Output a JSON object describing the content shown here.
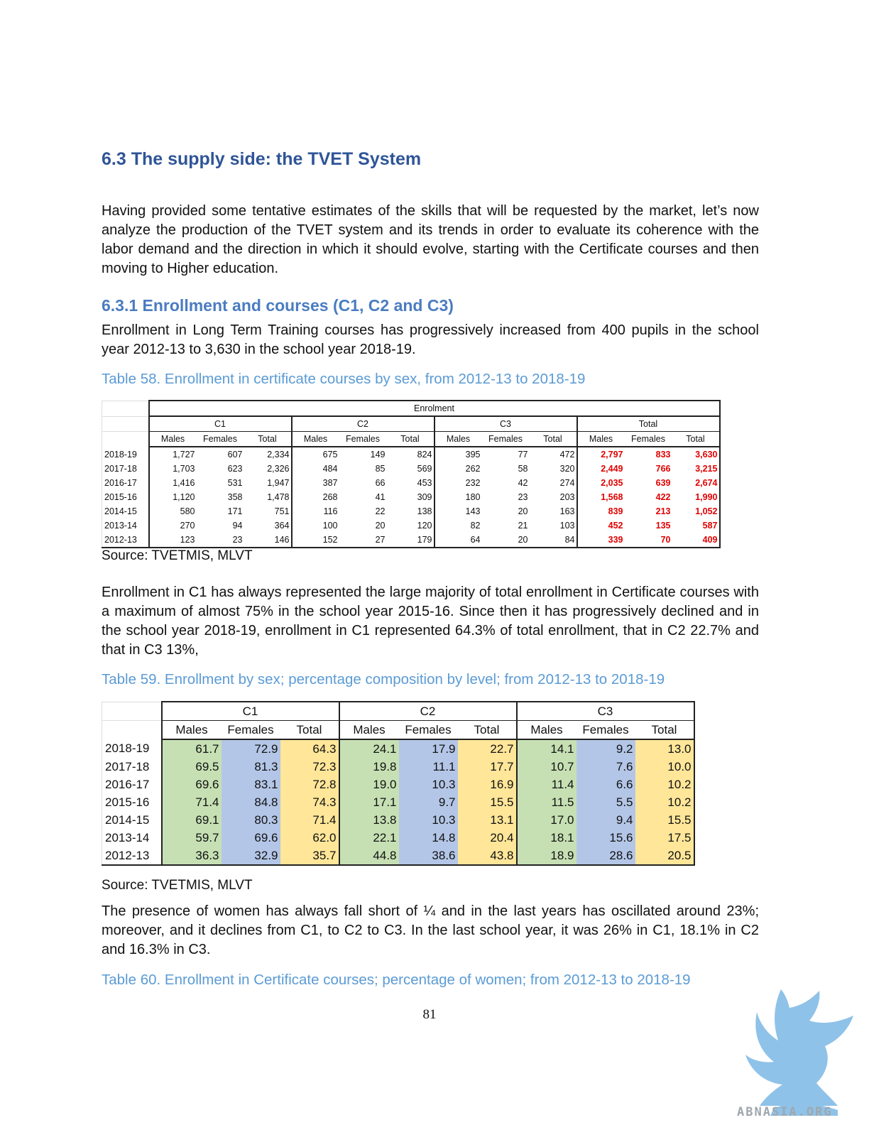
{
  "section_title": "6.3 The supply side: the TVET System",
  "intro_paragraph": "Having provided some tentative estimates of the skills that will be requested by the market, let’s now analyze the production of the TVET system and its trends in order to evaluate its coherence with the labor demand and the direction in which it should evolve, starting with the Certificate courses and then moving to Higher education.",
  "subsection_title": "6.3.1 Enrollment and courses (C1, C2 and C3)",
  "enrollment_paragraph": "Enrollment in Long Term Training courses has progressively increased from 400 pupils in the school year 2012-13 to 3,630 in the school year 2018-19.",
  "table58": {
    "caption": "Table 58. Enrollment in certificate courses by sex, from 2012-13 to 2018-19",
    "super_header": "Enrolment",
    "groups": [
      "C1",
      "C2",
      "C3",
      "Total"
    ],
    "subheaders": [
      "Males",
      "Females",
      "Total",
      "Males",
      "Females",
      "Total",
      "Males",
      "Females",
      "Total",
      "Males",
      "Females",
      "Total"
    ],
    "rows": [
      {
        "year": "2018-19",
        "values": [
          "1,727",
          "607",
          "2,334",
          "675",
          "149",
          "824",
          "395",
          "77",
          "472",
          "2,797",
          "833",
          "3,630"
        ]
      },
      {
        "year": "2017-18",
        "values": [
          "1,703",
          "623",
          "2,326",
          "484",
          "85",
          "569",
          "262",
          "58",
          "320",
          "2,449",
          "766",
          "3,215"
        ]
      },
      {
        "year": "2016-17",
        "values": [
          "1,416",
          "531",
          "1,947",
          "387",
          "66",
          "453",
          "232",
          "42",
          "274",
          "2,035",
          "639",
          "2,674"
        ]
      },
      {
        "year": "2015-16",
        "values": [
          "1,120",
          "358",
          "1,478",
          "268",
          "41",
          "309",
          "180",
          "23",
          "203",
          "1,568",
          "422",
          "1,990"
        ]
      },
      {
        "year": "2014-15",
        "values": [
          "580",
          "171",
          "751",
          "116",
          "22",
          "138",
          "143",
          "20",
          "163",
          "839",
          "213",
          "1,052"
        ]
      },
      {
        "year": "2013-14",
        "values": [
          "270",
          "94",
          "364",
          "100",
          "20",
          "120",
          "82",
          "21",
          "103",
          "452",
          "135",
          "587"
        ]
      },
      {
        "year": "2012-13",
        "values": [
          "123",
          "23",
          "146",
          "152",
          "27",
          "179",
          "64",
          "20",
          "84",
          "339",
          "70",
          "409"
        ]
      }
    ],
    "source": "Source: TVETMIS, MLVT"
  },
  "c1_paragraph": "Enrollment in C1 has always represented the large majority of total enrollment in Certificate courses with a maximum of almost 75% in the school year 2015-16. Since then it has progressively declined and in the school year 2018-19, enrollment in C1 represented 64.3% of total enrollment, that in C2 22.7% and that in C3 13%,",
  "table59": {
    "caption": "Table 59. Enrollment by sex; percentage composition by level; from 2012-13 to 2018-19",
    "groups": [
      "C1",
      "C2",
      "C3"
    ],
    "subheaders": [
      "Males",
      "Females",
      "Total",
      "Males",
      "Females",
      "Total",
      "Males",
      "Females",
      "Total"
    ],
    "rows": [
      {
        "year": "2018-19",
        "values": [
          "61.7",
          "72.9",
          "64.3",
          "24.1",
          "17.9",
          "22.7",
          "14.1",
          "9.2",
          "13.0"
        ]
      },
      {
        "year": "2017-18",
        "values": [
          "69.5",
          "81.3",
          "72.3",
          "19.8",
          "11.1",
          "17.7",
          "10.7",
          "7.6",
          "10.0"
        ]
      },
      {
        "year": "2016-17",
        "values": [
          "69.6",
          "83.1",
          "72.8",
          "19.0",
          "10.3",
          "16.9",
          "11.4",
          "6.6",
          "10.2"
        ]
      },
      {
        "year": "2015-16",
        "values": [
          "71.4",
          "84.8",
          "74.3",
          "17.1",
          "9.7",
          "15.5",
          "11.5",
          "5.5",
          "10.2"
        ]
      },
      {
        "year": "2014-15",
        "values": [
          "69.1",
          "80.3",
          "71.4",
          "13.8",
          "10.3",
          "13.1",
          "17.0",
          "9.4",
          "15.5"
        ]
      },
      {
        "year": "2013-14",
        "values": [
          "59.7",
          "69.6",
          "62.0",
          "22.1",
          "14.8",
          "20.4",
          "18.1",
          "15.6",
          "17.5"
        ]
      },
      {
        "year": "2012-13",
        "values": [
          "36.3",
          "32.9",
          "35.7",
          "44.8",
          "38.6",
          "43.8",
          "18.9",
          "28.6",
          "20.5"
        ]
      }
    ],
    "source": "Source: TVETMIS, MLVT"
  },
  "women_paragraph": "The presence of women has always fall short of ¼ and in the last years has oscillated around 23%; moreover, and it declines from C1, to C2 to C3. In the last school year, it was 26% in C1, 18.1% in C2 and 16.3% in C3.",
  "table60_caption": "Table 60. Enrollment in Certificate courses; percentage of women; from 2012-13 to 2018-19",
  "page_number": "81",
  "watermark_text": "ABNASIA.ORG",
  "colors": {
    "heading": "#2f5597",
    "subheading": "#4a7cc1",
    "caption": "#5b9bd5",
    "total_red": "#e00000",
    "males_green": "#c6e0b4",
    "females_blue": "#b4c6e7",
    "total_yellow": "#ffe699"
  }
}
